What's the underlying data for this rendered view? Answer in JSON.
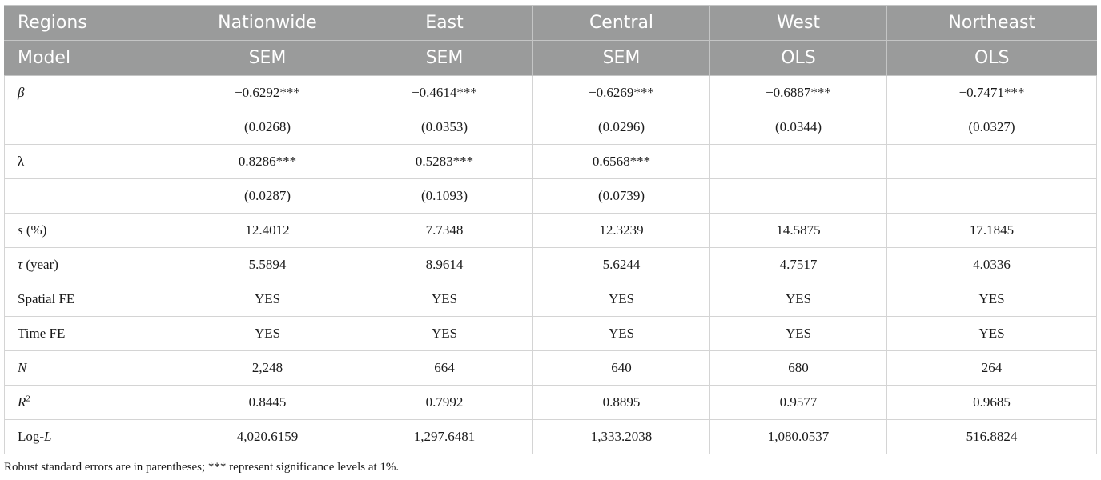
{
  "header": {
    "regions_label": "Regions",
    "model_label": "Model",
    "regions": [
      "Nationwide",
      "East",
      "Central",
      "West",
      "Northeast"
    ],
    "models": [
      "SEM",
      "SEM",
      "SEM",
      "OLS",
      "OLS"
    ]
  },
  "rows": [
    {
      "label": "β",
      "italic": true,
      "values": [
        "−0.6292***",
        "−0.4614***",
        "−0.6269***",
        "−0.6887***",
        "−0.7471***"
      ]
    },
    {
      "label": "",
      "values": [
        "(0.0268)",
        "(0.0353)",
        "(0.0296)",
        "(0.0344)",
        "(0.0327)"
      ]
    },
    {
      "label": "λ",
      "values": [
        "0.8286***",
        "0.5283***",
        "0.6568***",
        "",
        ""
      ]
    },
    {
      "label": "",
      "values": [
        "(0.0287)",
        "(0.1093)",
        "(0.0739)",
        "",
        ""
      ]
    },
    {
      "label_main": "s",
      "label_suffix": " (%)",
      "values": [
        "12.4012",
        "7.7348",
        "12.3239",
        "14.5875",
        "17.1845"
      ]
    },
    {
      "label_main": "τ",
      "label_suffix": " (year)",
      "values": [
        "5.5894",
        "8.9614",
        "5.6244",
        "4.7517",
        "4.0336"
      ]
    },
    {
      "label": "Spatial FE",
      "values": [
        "YES",
        "YES",
        "YES",
        "YES",
        "YES"
      ]
    },
    {
      "label": "Time FE",
      "values": [
        "YES",
        "YES",
        "YES",
        "YES",
        "YES"
      ]
    },
    {
      "label": "N",
      "italic": true,
      "values": [
        "2,248",
        "664",
        "640",
        "680",
        "264"
      ]
    },
    {
      "label_main": "R",
      "label_sup": "2",
      "values": [
        "0.8445",
        "0.7992",
        "0.8895",
        "0.9577",
        "0.9685"
      ]
    },
    {
      "label_pre": "Log-",
      "label_main": "L",
      "values": [
        "4,020.6159",
        "1,297.6481",
        "1,333.2038",
        "1,080.0537",
        "516.8824"
      ]
    }
  ],
  "footnote": "Robust standard errors are in parentheses; *** represent significance levels at 1%."
}
